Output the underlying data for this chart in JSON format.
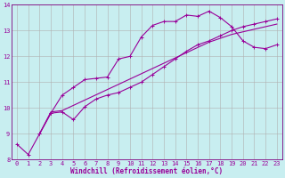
{
  "bg_color": "#c8eef0",
  "grid_color": "#b0b0b0",
  "line_color": "#990099",
  "xlabel": "Windchill (Refroidissement éolien,°C)",
  "ylim": [
    8,
    14
  ],
  "xlim": [
    -0.5,
    23.5
  ],
  "yticks": [
    8,
    9,
    10,
    11,
    12,
    13,
    14
  ],
  "xticks": [
    0,
    1,
    2,
    3,
    4,
    5,
    6,
    7,
    8,
    9,
    10,
    11,
    12,
    13,
    14,
    15,
    16,
    17,
    18,
    19,
    20,
    21,
    22,
    23
  ],
  "line1_x": [
    0,
    1,
    2,
    3,
    4,
    5,
    6,
    7,
    8,
    9,
    10,
    11,
    12,
    13,
    14,
    15,
    16,
    17,
    18,
    19,
    20,
    21,
    22,
    23
  ],
  "line1_y": [
    8.6,
    8.2,
    9.0,
    9.8,
    10.5,
    10.8,
    11.1,
    11.15,
    11.2,
    11.9,
    12.0,
    12.75,
    13.2,
    13.35,
    13.35,
    13.6,
    13.55,
    13.75,
    13.5,
    13.15,
    12.6,
    12.35,
    12.3,
    12.45
  ],
  "line2_x": [
    2,
    3,
    4,
    5,
    6,
    7,
    8,
    9,
    10,
    11,
    12,
    13,
    14,
    15,
    16,
    17,
    18,
    19,
    20,
    21,
    22,
    23
  ],
  "line2_y": [
    9.0,
    9.8,
    9.85,
    9.55,
    10.05,
    10.35,
    10.5,
    10.6,
    10.8,
    11.0,
    11.3,
    11.6,
    11.9,
    12.2,
    12.45,
    12.6,
    12.8,
    13.0,
    13.15,
    13.25,
    13.35,
    13.45
  ],
  "line3_x": [
    2,
    3,
    4,
    17,
    18,
    19,
    20,
    21,
    22,
    23
  ],
  "line3_y": [
    9.0,
    9.85,
    9.9,
    12.55,
    12.7,
    12.85,
    12.95,
    13.05,
    13.15,
    13.25
  ],
  "xlabel_fontsize": 5.5,
  "tick_fontsize": 5.0,
  "marker": "+",
  "marker_size": 3,
  "line_width": 0.8,
  "spine_color": "#7f007f"
}
